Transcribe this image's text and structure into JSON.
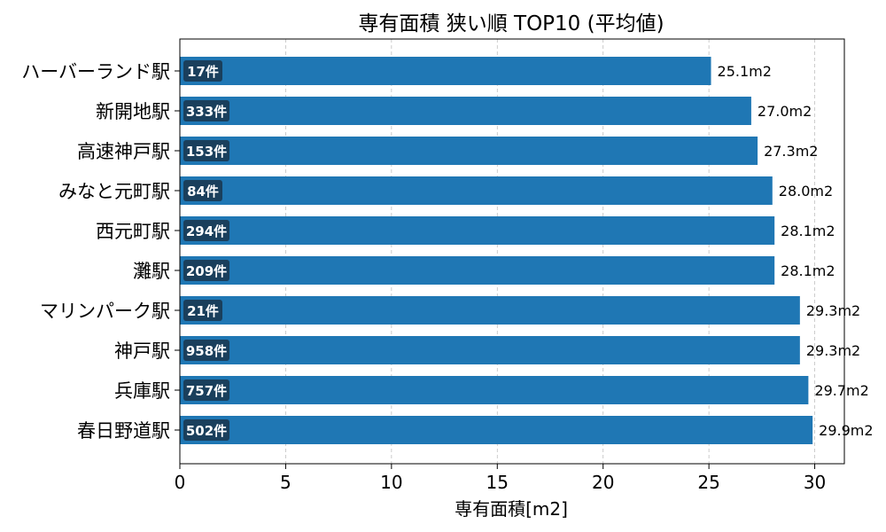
{
  "chart_data": {
    "type": "bar",
    "orientation": "horizontal",
    "title": "専有面積 狭い順 TOP10 (平均値)",
    "xlabel": "専有面積[m2]",
    "ylabel": "",
    "xlim": [
      0,
      31.4
    ],
    "xticks": [
      0,
      5,
      10,
      15,
      20,
      25,
      30
    ],
    "grid": "x-dashed",
    "bar_color": "#1f77b4",
    "badge_color": "#1a3f5c",
    "value_suffix": "m2",
    "bars": [
      {
        "category": "ハーバーランド駅",
        "value": 25.1,
        "count_label": "17件"
      },
      {
        "category": "新開地駅",
        "value": 27.0,
        "count_label": "333件"
      },
      {
        "category": "高速神戸駅",
        "value": 27.3,
        "count_label": "153件"
      },
      {
        "category": "みなと元町駅",
        "value": 28.0,
        "count_label": "84件"
      },
      {
        "category": "西元町駅",
        "value": 28.1,
        "count_label": "294件"
      },
      {
        "category": "灘駅",
        "value": 28.1,
        "count_label": "209件"
      },
      {
        "category": "マリンパーク駅",
        "value": 29.3,
        "count_label": "21件"
      },
      {
        "category": "神戸駅",
        "value": 29.3,
        "count_label": "958件"
      },
      {
        "category": "兵庫駅",
        "value": 29.7,
        "count_label": "757件"
      },
      {
        "category": "春日野道駅",
        "value": 29.9,
        "count_label": "502件"
      }
    ]
  }
}
